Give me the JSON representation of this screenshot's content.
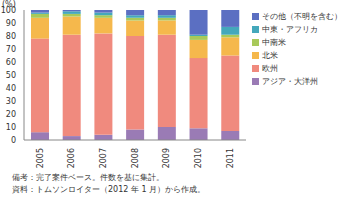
{
  "chart_data": {
    "type": "bar",
    "stacked": true,
    "grid": false,
    "legend": "right",
    "y_label": "(%)",
    "categories": [
      "2005",
      "2006",
      "2007",
      "2008",
      "2009",
      "2010",
      "2011"
    ],
    "ylim": [
      0,
      100
    ],
    "yticks": [
      0,
      10,
      20,
      30,
      40,
      50,
      60,
      70,
      80,
      90,
      100
    ],
    "series": [
      {
        "name": "アジア・大洋州",
        "color": "#9a7bb5",
        "values": [
          6,
          3,
          4,
          8,
          10,
          9,
          7
        ]
      },
      {
        "name": "欧州",
        "color": "#f08a7e",
        "values": [
          72,
          78,
          78,
          72,
          71,
          54,
          58
        ]
      },
      {
        "name": "北米",
        "color": "#f5b84c",
        "values": [
          16,
          14,
          12,
          12,
          11,
          14,
          14
        ]
      },
      {
        "name": "中南米",
        "color": "#a8c95a",
        "values": [
          3,
          2,
          2,
          2,
          2,
          3,
          2
        ]
      },
      {
        "name": "中東・アフリカ",
        "color": "#44a8bb",
        "values": [
          1,
          2,
          2,
          2,
          2,
          1,
          6
        ]
      },
      {
        "name": "その他（不明を含む）",
        "color": "#5b6fc2",
        "values": [
          2,
          1,
          2,
          4,
          4,
          19,
          13
        ]
      }
    ],
    "annotations": [
      "備考：完了案件ベース。件数を基に集計。",
      "資料：トムソンロイター（2012 年 1 月）から作成。"
    ]
  }
}
